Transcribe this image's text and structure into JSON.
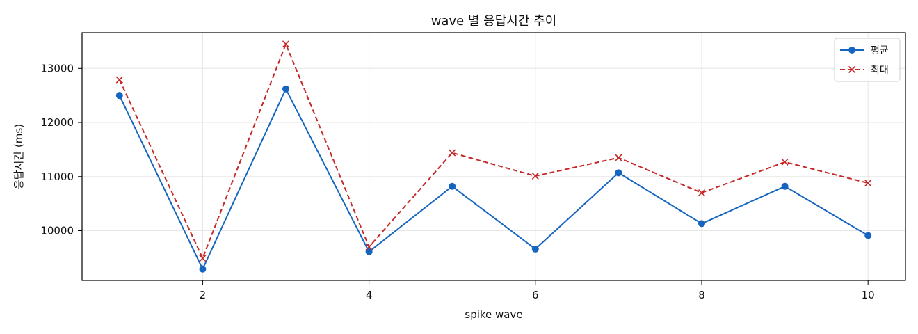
{
  "chart_data": {
    "type": "line",
    "title": "wave 별 응답시간 추이",
    "xlabel": "spike wave",
    "ylabel": "응답시간 (ms)",
    "xlim": [
      0.55,
      10.45
    ],
    "ylim": [
      9080,
      13660
    ],
    "xticks": [
      2,
      4,
      6,
      8,
      10
    ],
    "yticks": [
      10000,
      11000,
      12000,
      13000
    ],
    "grid": true,
    "legend_position": "top-right",
    "x": [
      1,
      2,
      3,
      4,
      5,
      6,
      7,
      8,
      9,
      10
    ],
    "series": [
      {
        "name": "평균",
        "color": "#1565c0",
        "marker": "circle",
        "linestyle": "solid",
        "values": [
          12500,
          9290,
          12620,
          9610,
          10820,
          9660,
          11070,
          10130,
          10820,
          9910
        ]
      },
      {
        "name": "최대",
        "color": "#c62828",
        "marker": "x",
        "linestyle": "dashed",
        "values": [
          12790,
          9490,
          13450,
          9700,
          11440,
          11010,
          11350,
          10700,
          11270,
          10880
        ]
      }
    ]
  }
}
